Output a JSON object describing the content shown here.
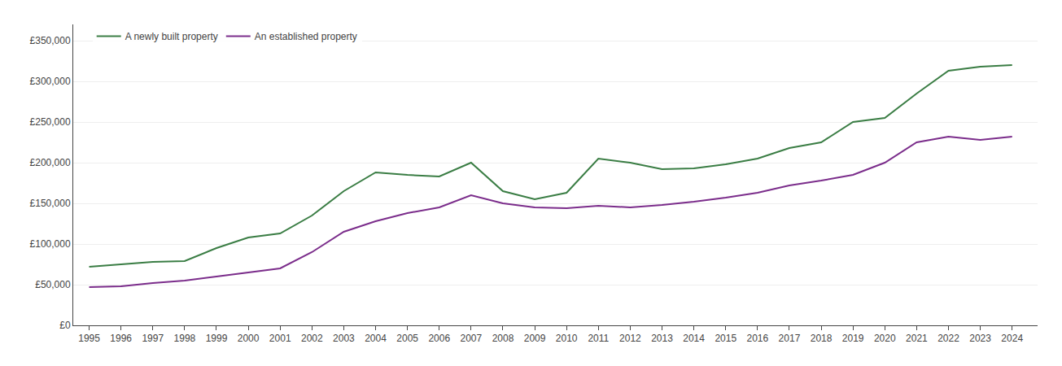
{
  "chart_data": {
    "type": "line",
    "x": [
      1995,
      1996,
      1997,
      1998,
      1999,
      2000,
      2001,
      2002,
      2003,
      2004,
      2005,
      2006,
      2007,
      2008,
      2009,
      2010,
      2011,
      2012,
      2013,
      2014,
      2015,
      2016,
      2017,
      2018,
      2019,
      2020,
      2021,
      2022,
      2023,
      2024
    ],
    "series": [
      {
        "name": "A newly built property",
        "color": "#3a7d44",
        "values": [
          72000,
          75000,
          78000,
          79000,
          95000,
          108000,
          113000,
          135000,
          165000,
          188000,
          185000,
          183000,
          200000,
          165000,
          155000,
          163000,
          205000,
          200000,
          192000,
          193000,
          198000,
          205000,
          218000,
          225000,
          250000,
          255000,
          285000,
          313000,
          318000,
          320000
        ]
      },
      {
        "name": "An established property",
        "color": "#7b2d8b",
        "values": [
          47000,
          48000,
          52000,
          55000,
          60000,
          65000,
          70000,
          90000,
          115000,
          128000,
          138000,
          145000,
          160000,
          150000,
          145000,
          144000,
          147000,
          145000,
          148000,
          152000,
          157000,
          163000,
          172000,
          178000,
          185000,
          200000,
          225000,
          232000,
          228000,
          232000
        ]
      }
    ],
    "xlim": [
      1994.5,
      2024.8
    ],
    "xticks": [
      1995,
      1996,
      1997,
      1998,
      1999,
      2000,
      2001,
      2002,
      2003,
      2004,
      2005,
      2006,
      2007,
      2008,
      2009,
      2010,
      2011,
      2012,
      2013,
      2014,
      2015,
      2016,
      2017,
      2018,
      2019,
      2020,
      2021,
      2022,
      2023,
      2024
    ],
    "ylim": [
      0,
      370000
    ],
    "yticks": [
      {
        "value": 0,
        "label": "£0"
      },
      {
        "value": 50000,
        "label": "£50,000"
      },
      {
        "value": 100000,
        "label": "£100,000"
      },
      {
        "value": 150000,
        "label": "£150,000"
      },
      {
        "value": 200000,
        "label": "£200,000"
      },
      {
        "value": 250000,
        "label": "£250,000"
      },
      {
        "value": 300000,
        "label": "£300,000"
      },
      {
        "value": 350000,
        "label": "£350,000"
      }
    ],
    "grid": true,
    "legend": "upper left"
  }
}
